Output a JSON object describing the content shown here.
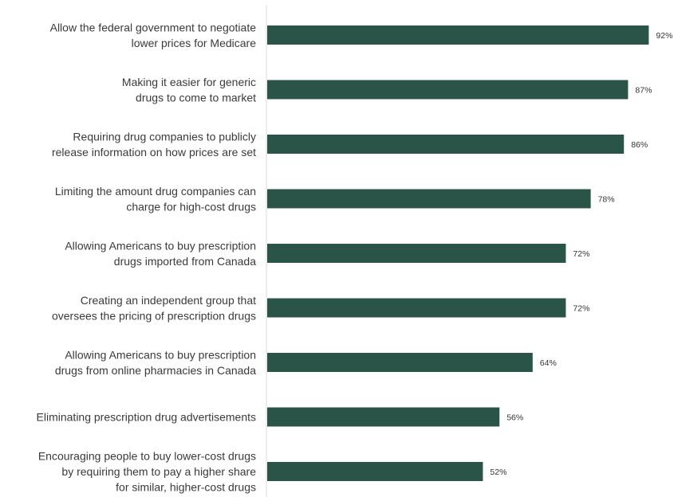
{
  "colors": {
    "bar": "#2b5448",
    "axis": "#d9d9d9",
    "text": "#3a3a3a"
  },
  "chart_data": {
    "type": "bar",
    "orientation": "horizontal",
    "title": "",
    "xlabel": "",
    "ylabel": "",
    "xlim": [
      0,
      100
    ],
    "grid": false,
    "legend": "none",
    "categories": [
      [
        "Allow the federal government to negotiate",
        "lower prices for Medicare"
      ],
      [
        "Making it easier for generic",
        "drugs to come to market"
      ],
      [
        "Requiring drug companies to publicly",
        "release information on how prices are set"
      ],
      [
        "Limiting the amount drug companies can",
        "charge for high-cost drugs"
      ],
      [
        "Allowing Americans to buy prescription",
        "drugs imported from Canada"
      ],
      [
        "Creating an independent group that",
        "oversees the pricing of prescription drugs"
      ],
      [
        "Allowing Americans to buy prescription",
        "drugs from online pharmacies in Canada"
      ],
      [
        "Eliminating prescription drug advertisements"
      ],
      [
        "Encouraging people to buy lower-cost drugs",
        "by requiring them to pay a higher share",
        "for similar, higher-cost drugs"
      ]
    ],
    "values": [
      92,
      87,
      86,
      78,
      72,
      72,
      64,
      56,
      52
    ],
    "value_labels": [
      "92%",
      "87%",
      "86%",
      "78%",
      "72%",
      "72%",
      "64%",
      "56%",
      "52%"
    ]
  }
}
